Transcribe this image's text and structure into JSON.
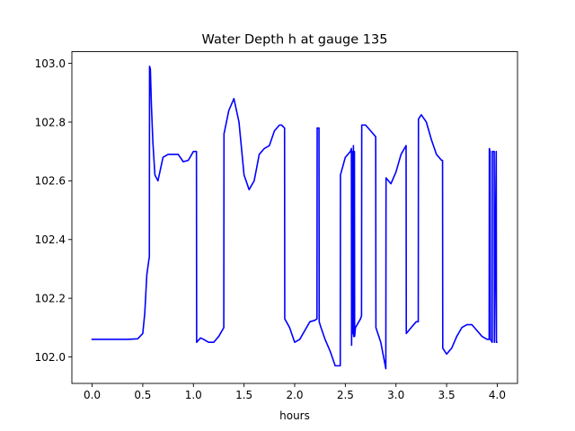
{
  "chart_data": {
    "type": "line",
    "title": "Water Depth h at gauge 135",
    "xlabel": "hours",
    "ylabel": "",
    "xlim": [
      -0.2,
      4.2
    ],
    "ylim": [
      101.91,
      103.04
    ],
    "xticks": [
      0.0,
      0.5,
      1.0,
      1.5,
      2.0,
      2.5,
      3.0,
      3.5,
      4.0
    ],
    "xtick_labels": [
      "0.0",
      "0.5",
      "1.0",
      "1.5",
      "2.0",
      "2.5",
      "3.0",
      "3.5",
      "4.0"
    ],
    "yticks": [
      102.0,
      102.2,
      102.4,
      102.6,
      102.8,
      103.0
    ],
    "ytick_labels": [
      "102.0",
      "102.2",
      "102.4",
      "102.6",
      "102.8",
      "103.0"
    ],
    "grid": false,
    "legend": "none",
    "series": [
      {
        "color": "#0000ff",
        "x": [
          0.0,
          0.2,
          0.35,
          0.45,
          0.5,
          0.52,
          0.54,
          0.56,
          0.565,
          0.567,
          0.575,
          0.585,
          0.6,
          0.62,
          0.65,
          0.7,
          0.75,
          0.8,
          0.85,
          0.9,
          0.95,
          1.0,
          1.03,
          1.032,
          1.07,
          1.1,
          1.15,
          1.2,
          1.25,
          1.3,
          1.302,
          1.35,
          1.4,
          1.45,
          1.5,
          1.55,
          1.6,
          1.65,
          1.7,
          1.75,
          1.8,
          1.85,
          1.87,
          1.9,
          1.902,
          1.95,
          2.0,
          2.05,
          2.1,
          2.15,
          2.2,
          2.22,
          2.222,
          2.24,
          2.242,
          2.26,
          2.3,
          2.35,
          2.4,
          2.45,
          2.452,
          2.5,
          2.55,
          2.56,
          2.562,
          2.57,
          2.572,
          2.58,
          2.582,
          2.59,
          2.592,
          2.6,
          2.65,
          2.66,
          2.662,
          2.7,
          2.75,
          2.8,
          2.802,
          2.85,
          2.9,
          2.902,
          2.95,
          3.0,
          3.05,
          3.1,
          3.102,
          3.15,
          3.2,
          3.22,
          3.222,
          3.25,
          3.3,
          3.35,
          3.4,
          3.45,
          3.46,
          3.462,
          3.5,
          3.55,
          3.6,
          3.65,
          3.7,
          3.75,
          3.8,
          3.85,
          3.9,
          3.92,
          3.922,
          3.93,
          3.932,
          3.95,
          3.952,
          3.97,
          3.972,
          3.99,
          3.992,
          3.995
        ],
        "y": [
          102.06,
          102.06,
          102.06,
          102.062,
          102.08,
          102.15,
          102.28,
          102.33,
          102.34,
          102.99,
          102.98,
          102.86,
          102.73,
          102.62,
          102.6,
          102.68,
          102.69,
          102.69,
          102.69,
          102.665,
          102.67,
          102.7,
          102.7,
          102.05,
          102.065,
          102.06,
          102.05,
          102.05,
          102.07,
          102.1,
          102.76,
          102.84,
          102.88,
          102.8,
          102.62,
          102.57,
          102.6,
          102.69,
          102.71,
          102.72,
          102.77,
          102.79,
          102.79,
          102.78,
          102.13,
          102.1,
          102.05,
          102.06,
          102.09,
          102.12,
          102.125,
          102.13,
          102.78,
          102.78,
          102.12,
          102.1,
          102.06,
          102.02,
          101.97,
          101.97,
          102.62,
          102.68,
          102.7,
          102.71,
          102.04,
          102.7,
          102.08,
          102.72,
          102.07,
          102.7,
          102.07,
          102.1,
          102.13,
          102.14,
          102.79,
          102.79,
          102.77,
          102.75,
          102.1,
          102.05,
          101.96,
          102.61,
          102.59,
          102.63,
          102.69,
          102.72,
          102.08,
          102.1,
          102.12,
          102.12,
          102.81,
          102.825,
          102.8,
          102.74,
          102.69,
          102.67,
          102.67,
          102.03,
          102.01,
          102.03,
          102.07,
          102.1,
          102.11,
          102.11,
          102.09,
          102.07,
          102.06,
          102.06,
          102.71,
          102.7,
          102.06,
          102.05,
          102.7,
          102.7,
          102.05,
          102.7,
          102.05,
          102.05
        ]
      }
    ]
  }
}
